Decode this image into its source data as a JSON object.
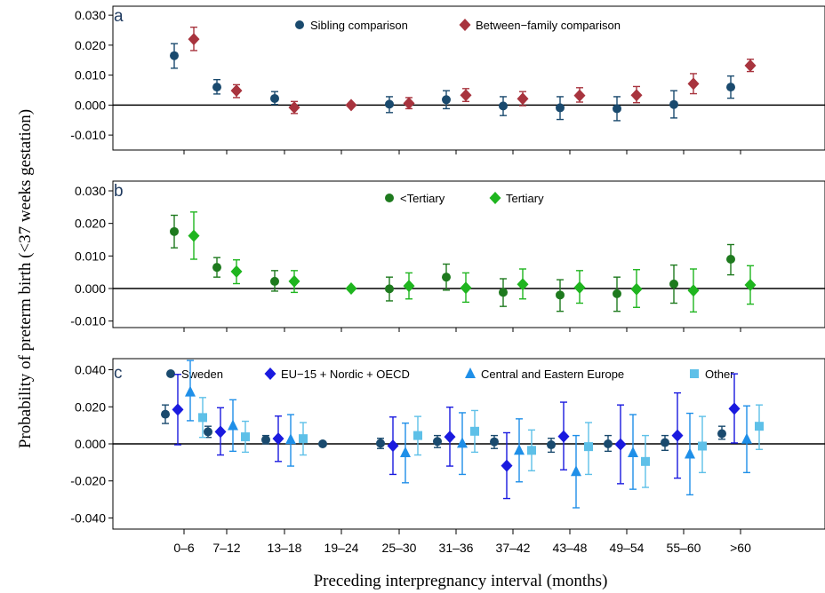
{
  "chart_data": {
    "type": "scatter",
    "xlabel": "Preceding interpregnancy interval (months)",
    "ylabel": "Probability of preterm birth (<37 weeks gestation)",
    "categories": [
      "0–6",
      "7–12",
      "13–18",
      "19–24",
      "25–30",
      "31–36",
      "37–42",
      "43–48",
      "49–54",
      "55–60",
      ">60"
    ],
    "reference_line": 0,
    "panels": [
      {
        "label": "a",
        "ylim": [
          -0.015,
          0.033
        ],
        "yticks": [
          -0.01,
          0.0,
          0.01,
          0.02,
          0.03
        ],
        "ytick_labels": [
          "-0.010",
          "0.000",
          "0.010",
          "0.020",
          "0.030"
        ],
        "legend_placement": "top-center",
        "series": [
          {
            "name": "Sibling comparison",
            "marker": "circle",
            "color": "#1a4a6e",
            "values": [
              0.0165,
              0.006,
              0.0022,
              null,
              0.0003,
              0.0018,
              -0.0003,
              -0.0009,
              -0.0012,
              0.0002,
              0.006
            ],
            "lower": [
              0.0123,
              0.0037,
              0.0002,
              null,
              -0.0025,
              -0.0012,
              -0.0035,
              -0.0048,
              -0.0052,
              -0.0043,
              0.0023
            ],
            "upper": [
              0.0205,
              0.0085,
              0.0045,
              null,
              0.0028,
              0.0048,
              0.0028,
              0.0028,
              0.0028,
              0.0048,
              0.0097
            ]
          },
          {
            "name": "Between−family comparison",
            "marker": "diamond",
            "color": "#a8343e",
            "values": [
              0.022,
              0.0048,
              -0.0008,
              0.0,
              0.0006,
              0.0033,
              0.0021,
              0.0032,
              0.0033,
              0.0071,
              0.0132
            ],
            "lower": [
              0.0182,
              0.0025,
              -0.0028,
              null,
              -0.0012,
              0.0012,
              -0.0002,
              0.001,
              0.0008,
              0.0038,
              0.0112
            ],
            "upper": [
              0.026,
              0.0068,
              0.0012,
              null,
              0.0025,
              0.0055,
              0.0045,
              0.0058,
              0.0062,
              0.0105,
              0.0153
            ]
          }
        ]
      },
      {
        "label": "b",
        "ylim": [
          -0.012,
          0.033
        ],
        "yticks": [
          -0.01,
          0.0,
          0.01,
          0.02,
          0.03
        ],
        "ytick_labels": [
          "-0.010",
          "0.000",
          "0.010",
          "0.020",
          "0.030"
        ],
        "legend_placement": "top-center",
        "series": [
          {
            "name": "<Tertiary",
            "marker": "circle",
            "color": "#1e7a1e",
            "values": [
              0.0175,
              0.0065,
              0.0022,
              null,
              -0.0001,
              0.0035,
              -0.0012,
              -0.002,
              -0.0016,
              0.0014,
              0.009
            ],
            "lower": [
              0.0125,
              0.0035,
              -0.0008,
              null,
              -0.0038,
              -0.0005,
              -0.0055,
              -0.007,
              -0.007,
              -0.0045,
              0.0042
            ],
            "upper": [
              0.0225,
              0.0095,
              0.0055,
              null,
              0.0035,
              0.0075,
              0.003,
              0.0027,
              0.0035,
              0.0072,
              0.0135
            ]
          },
          {
            "name": "Tertiary",
            "marker": "diamond",
            "color": "#1fb51f",
            "values": [
              0.0162,
              0.0052,
              0.0022,
              0.0,
              0.0008,
              0.0002,
              0.0013,
              0.0003,
              -0.0002,
              -0.0006,
              0.0011
            ],
            "lower": [
              0.009,
              0.0015,
              -0.0012,
              null,
              -0.0032,
              -0.0042,
              -0.0032,
              -0.0045,
              -0.0058,
              -0.0072,
              -0.0048
            ],
            "upper": [
              0.0235,
              0.0088,
              0.0055,
              null,
              0.0048,
              0.0048,
              0.006,
              0.0055,
              0.0058,
              0.006,
              0.007
            ]
          }
        ]
      },
      {
        "label": "c",
        "ylim": [
          -0.046,
          0.046
        ],
        "yticks": [
          -0.04,
          -0.02,
          0.0,
          0.02,
          0.04
        ],
        "ytick_labels": [
          "-0.040",
          "-0.020",
          "0.000",
          "0.020",
          "0.040"
        ],
        "legend_placement": "top",
        "series": [
          {
            "name": "Sweden",
            "marker": "circle",
            "color": "#1a4a6e",
            "values": [
              0.016,
              0.0065,
              0.0022,
              0.0,
              0.0003,
              0.0013,
              0.0011,
              -0.0005,
              0.0,
              0.0007,
              0.0055
            ],
            "lower": [
              0.011,
              0.0035,
              0.0,
              null,
              -0.0025,
              -0.002,
              -0.0025,
              -0.0045,
              -0.004,
              -0.0035,
              0.0025
            ],
            "upper": [
              0.021,
              0.0095,
              0.0045,
              null,
              0.003,
              0.0045,
              0.0045,
              0.003,
              0.0045,
              0.0045,
              0.0095
            ]
          },
          {
            "name": "EU−15 + Nordic + OECD",
            "marker": "diamond",
            "color": "#1a1adf",
            "values": [
              0.0185,
              0.0065,
              0.0028,
              null,
              -0.001,
              0.0038,
              -0.0118,
              0.004,
              -0.0003,
              0.0045,
              0.019
            ],
            "lower": [
              -0.0005,
              -0.006,
              -0.0095,
              null,
              -0.0165,
              -0.012,
              -0.0295,
              -0.014,
              -0.0215,
              -0.0185,
              0.0005
            ],
            "upper": [
              0.0375,
              0.0195,
              0.015,
              null,
              0.0145,
              0.0198,
              0.006,
              0.0225,
              0.021,
              0.0275,
              0.0378
            ]
          },
          {
            "name": "Central and Eastern Europe",
            "marker": "triangle",
            "color": "#1f8fe8",
            "values": [
              0.028,
              0.0098,
              0.0023,
              null,
              -0.0048,
              0.0003,
              -0.0035,
              -0.015,
              -0.0048,
              -0.0055,
              0.0025
            ],
            "lower": [
              0.0125,
              -0.004,
              -0.012,
              null,
              -0.021,
              -0.0165,
              -0.0205,
              -0.0345,
              -0.0245,
              -0.0275,
              -0.0155
            ],
            "upper": [
              0.045,
              0.0238,
              0.0158,
              null,
              0.0112,
              0.0168,
              0.0135,
              0.0045,
              0.0158,
              0.0165,
              0.0205
            ]
          },
          {
            "name": "Other",
            "marker": "square",
            "color": "#5ec0e8",
            "values": [
              0.0142,
              0.0038,
              0.0028,
              null,
              0.0045,
              0.0068,
              -0.0035,
              -0.0015,
              -0.0095,
              -0.0012,
              0.0095
            ],
            "lower": [
              0.0035,
              -0.0045,
              -0.006,
              null,
              -0.006,
              -0.0045,
              -0.0145,
              -0.0165,
              -0.0235,
              -0.0155,
              -0.003
            ],
            "upper": [
              0.025,
              0.0122,
              0.0115,
              null,
              0.0148,
              0.018,
              0.0075,
              0.0115,
              0.0045,
              0.0148,
              0.021
            ]
          }
        ]
      }
    ]
  }
}
